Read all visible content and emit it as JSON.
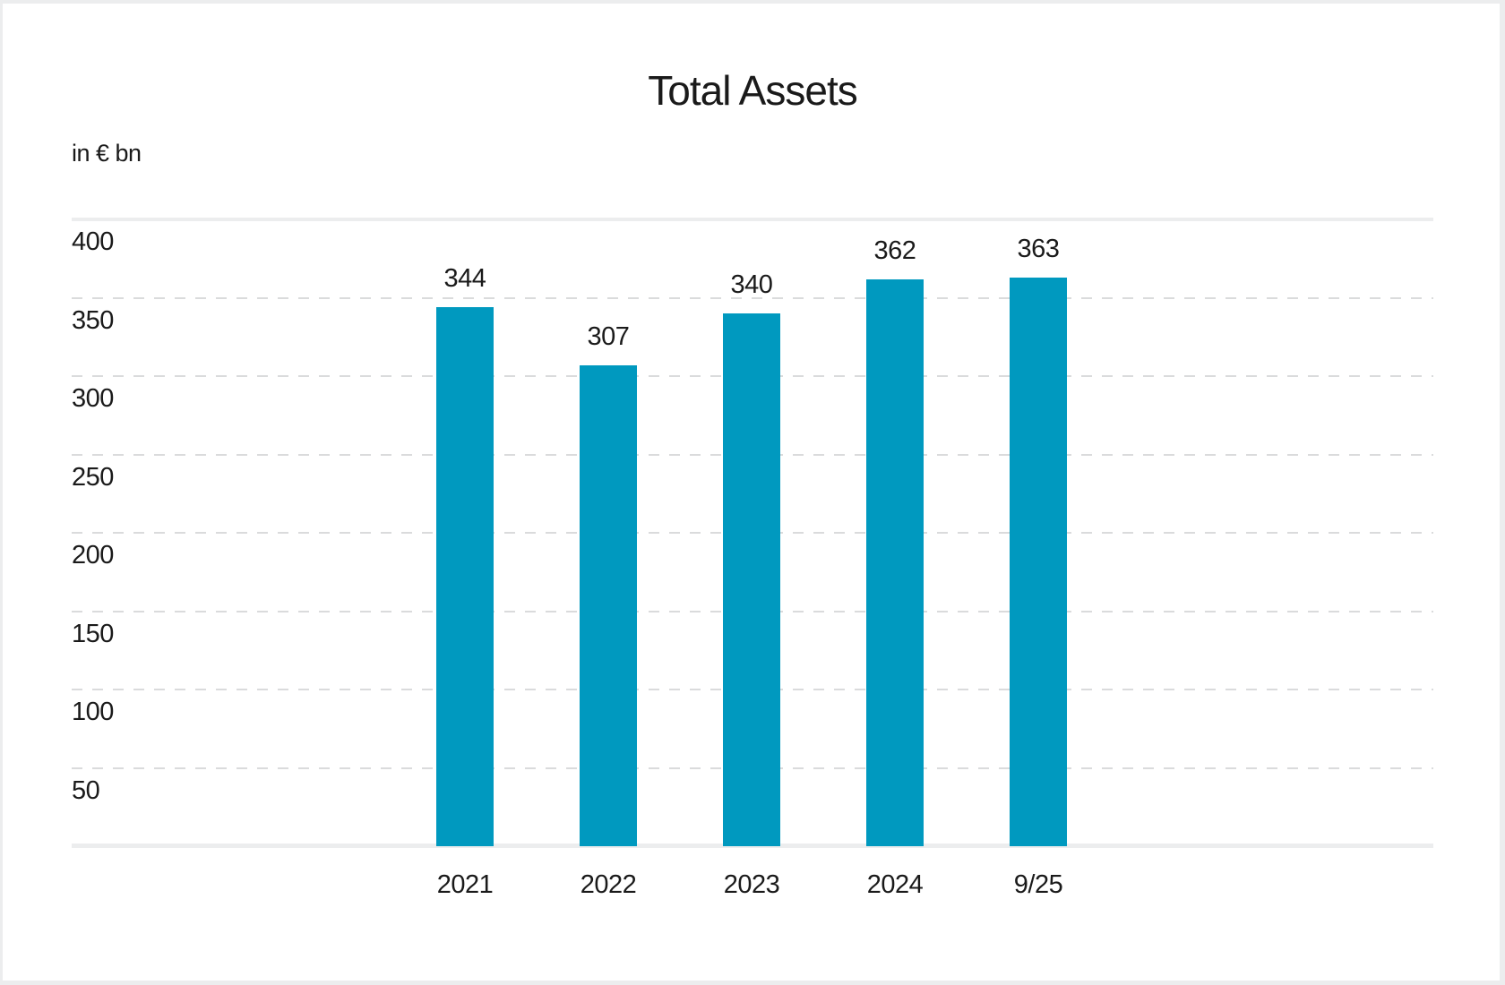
{
  "page": {
    "background_color": "#ECEDEE",
    "card_background_color": "#FFFFFF",
    "text_color": "#1A1A1A"
  },
  "chart_data": {
    "type": "bar",
    "title": "Total Assets",
    "unit_label": "in € bn",
    "categories": [
      "2021",
      "2022",
      "2023",
      "2024",
      "9/25"
    ],
    "values": [
      344,
      307,
      340,
      362,
      363
    ],
    "bar_color": "#0099BF",
    "ylim": [
      0,
      400
    ],
    "yticks": [
      400,
      350,
      300,
      250,
      200,
      150,
      100,
      50
    ],
    "ytick_interval": 50,
    "grid": "horizontal",
    "gridline_style": "dashed, with solid line at 400 and solid zero baseline",
    "solid_gridline_color": "#ECEDEE",
    "dashed_gridline_color": "#DADBDC",
    "value_labels": "above bars",
    "legend": "none",
    "xlabel": "",
    "ylabel": "in € bn"
  }
}
